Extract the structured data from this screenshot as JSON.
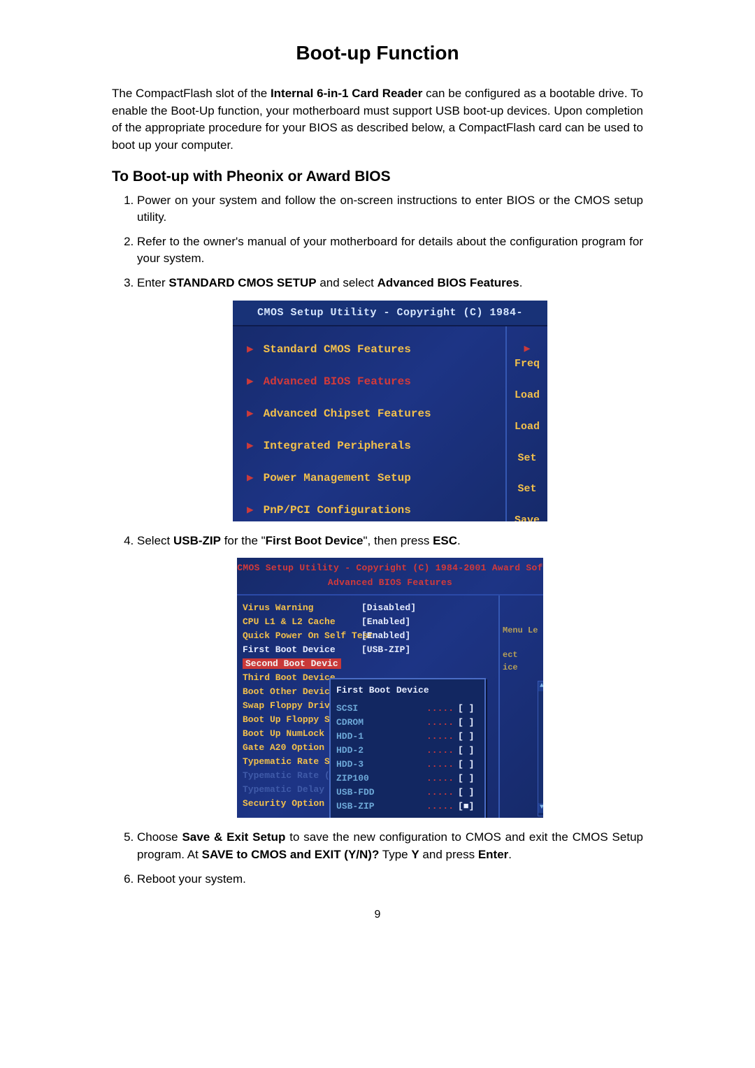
{
  "title": "Boot-up Function",
  "intro_parts": {
    "p1a": "The CompactFlash slot of the ",
    "bold1": "Internal 6-in-1 Card Reader",
    "p1b": " can be configured as a bootable drive. To enable the Boot-Up function, your motherboard must support USB boot-up devices. Upon completion of the appropriate procedure for your BIOS as described below, a CompactFlash card can be used to boot up your computer."
  },
  "h2": "To Boot-up with Pheonix or Award BIOS",
  "steps": {
    "s1": "Power on your system and follow the on-screen instructions to enter BIOS or the CMOS setup utility.",
    "s2": "Refer to the owner's manual of your motherboard for details about the configuration program for your system.",
    "s3a": "Enter ",
    "s3b1": "STANDARD CMOS SETUP",
    "s3c": " and select ",
    "s3b2": "Advanced BIOS Features",
    "s3d": ".",
    "s4a": "Select ",
    "s4b1": "USB-ZIP",
    "s4c": " for the \"",
    "s4b2": "First Boot Device",
    "s4d": "\", then press ",
    "s4b3": "ESC",
    "s4e": ".",
    "s5a": "Choose ",
    "s5b1": "Save & Exit Setup",
    "s5c": " to save the new configuration to CMOS and exit the CMOS Setup program. At ",
    "s5b2": "SAVE to CMOS and EXIT (Y/N)?",
    "s5d": "   Type ",
    "s5b3": "Y",
    "s5e": " and press ",
    "s5b4": "Enter",
    "s5f": ".",
    "s6": "Reboot your system."
  },
  "bios1": {
    "title": "CMOS Setup Utility - Copyright (C) 1984-",
    "items": [
      "Standard CMOS Features",
      "Advanced BIOS Features",
      "Advanced Chipset Features",
      "Integrated Peripherals",
      "Power Management Setup",
      "PnP/PCI Configurations"
    ],
    "right": [
      "Freq",
      "Load",
      "Load",
      "Set",
      "Set",
      "Save"
    ],
    "colors": {
      "bg": "#162a6a",
      "arrow": "#cc3a3a",
      "text_yellow": "#f3c04b",
      "text_highlight": "#d33a3a",
      "text_white": "#eaf0ff"
    }
  },
  "bios2": {
    "title": "CMOS Setup Utility - Copyright (C) 1984-2001 Award Sof",
    "subtitle": "Advanced BIOS Features",
    "rows": [
      {
        "label": "Virus Warning",
        "val": "[Disabled]"
      },
      {
        "label": "CPU L1 & L2 Cache",
        "val": "[Enabled]"
      },
      {
        "label": "Quick Power On Self Test",
        "val": "[Enabled]"
      },
      {
        "label": "First Boot Device",
        "val": "[USB-ZIP]"
      },
      {
        "label": "Second Boot Devic",
        "val": ""
      },
      {
        "label": "Third Boot Device",
        "val": ""
      },
      {
        "label": "Boot Other Device",
        "val": ""
      },
      {
        "label": "Swap Floppy Drive",
        "val": ""
      },
      {
        "label": "Boot Up Floppy Se",
        "val": ""
      },
      {
        "label": "Boot Up NumLock S",
        "val": ""
      },
      {
        "label": "Gate A20 Option",
        "val": ""
      },
      {
        "label": "Typematic Rate Se",
        "val": ""
      },
      {
        "label": "Typematic Rate (C",
        "val": ""
      },
      {
        "label": "Typematic Delay (",
        "val": ""
      },
      {
        "label": "Security Option",
        "val": ""
      }
    ],
    "right_labels": {
      "menu": "Menu Le",
      "ect": "ect",
      "ice": "ice"
    },
    "popup": {
      "title": "First Boot Device",
      "options": [
        {
          "name": "SCSI",
          "sel": false
        },
        {
          "name": "CDROM",
          "sel": false
        },
        {
          "name": "HDD-1",
          "sel": false
        },
        {
          "name": "HDD-2",
          "sel": false
        },
        {
          "name": "HDD-3",
          "sel": false
        },
        {
          "name": "ZIP100",
          "sel": false
        },
        {
          "name": "USB-FDD",
          "sel": false
        },
        {
          "name": "USB-ZIP",
          "sel": true
        }
      ]
    },
    "colors": {
      "bg": "#162a6a",
      "label": "#f3c04b",
      "val": "#e8eeff",
      "title": "#d33a3a",
      "popup_name": "#6da8d8",
      "popup_dots": "#d33a3a",
      "dim": "#3f5aa8"
    }
  },
  "page_number": "9"
}
